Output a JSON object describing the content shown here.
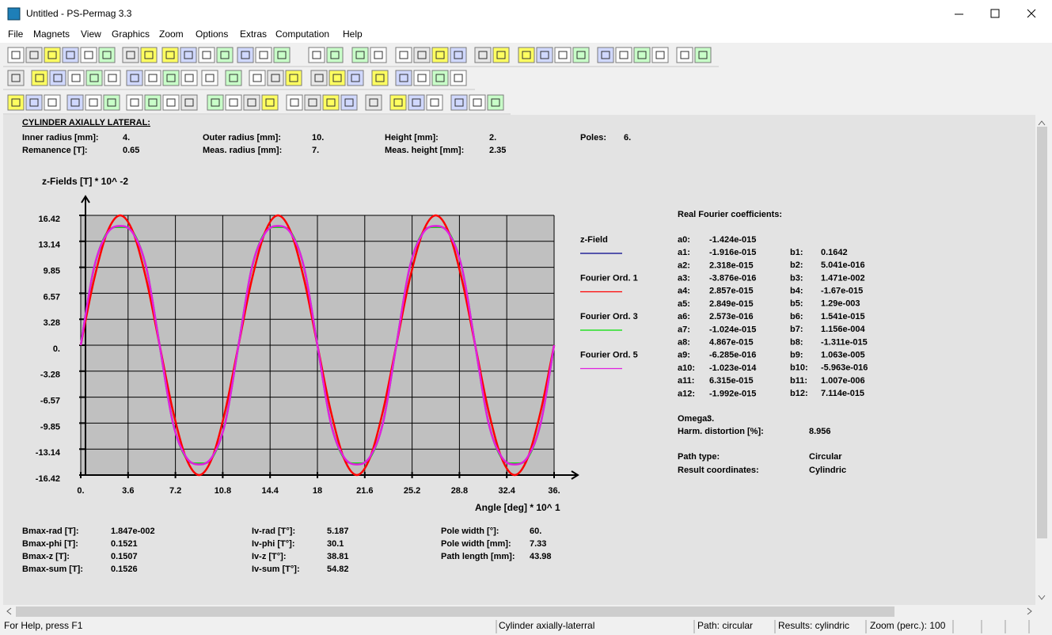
{
  "window": {
    "title": "Untitled - PS-Permag 3.3"
  },
  "menu": [
    "File",
    "Magnets",
    "View",
    "Graphics",
    "Zoom",
    "Options",
    "Extras",
    "Computation",
    "Help"
  ],
  "header": {
    "title": "CYLINDER AXIALLY LATERAL:",
    "params": [
      {
        "label": "Inner radius [mm]:",
        "value": "4."
      },
      {
        "label": "Outer radius [mm]:",
        "value": "10."
      },
      {
        "label": "Height [mm]:",
        "value": "2."
      },
      {
        "label": "Poles:",
        "value": "6."
      },
      {
        "label": "Remanence [T]:",
        "value": "0.65"
      },
      {
        "label": "Meas. radius [mm]:",
        "value": "7."
      },
      {
        "label": "Meas. height [mm]:",
        "value": "2.35"
      }
    ]
  },
  "chart_data": {
    "type": "line",
    "title": "z-Fields [T] * 10^ -2",
    "x_label": "Angle [deg] * 10^ 1",
    "x": [
      0,
      1,
      2,
      3,
      4,
      5,
      6,
      7,
      8,
      9,
      10,
      11,
      12,
      13,
      14,
      15,
      16,
      17,
      18,
      19,
      20,
      21,
      22,
      23,
      24,
      25,
      26,
      27,
      28,
      29,
      30,
      31,
      32,
      33,
      34,
      35,
      36
    ],
    "series": [
      {
        "name": "z-Field",
        "color": "#00008b",
        "values": [
          0,
          9.74,
          14.11,
          15.08,
          14.11,
          9.74,
          0,
          -9.74,
          -14.11,
          -15.08,
          -14.11,
          -9.74,
          0,
          9.74,
          14.11,
          15.08,
          14.11,
          9.74,
          0,
          -9.74,
          -14.11,
          -15.08,
          -14.11,
          -9.74,
          0,
          9.74,
          14.11,
          15.08,
          14.11,
          9.74,
          0,
          -9.74,
          -14.11,
          -15.08,
          -14.11,
          -9.74,
          0
        ]
      },
      {
        "name": "Fourier Ord. 1",
        "color": "#ff0000",
        "values": [
          0,
          8.21,
          14.22,
          16.42,
          14.22,
          8.21,
          0,
          -8.21,
          -14.22,
          -16.42,
          -14.22,
          -8.21,
          0,
          8.21,
          14.22,
          16.42,
          14.22,
          8.21,
          0,
          -8.21,
          -14.22,
          -16.42,
          -14.22,
          -8.21,
          0,
          8.21,
          14.22,
          16.42,
          14.22,
          8.21,
          0,
          -8.21,
          -14.22,
          -16.42,
          -14.22,
          -8.21,
          0
        ]
      },
      {
        "name": "Fourier Ord. 3",
        "color": "#00e000",
        "values": [
          0,
          9.68,
          14.22,
          14.95,
          14.22,
          9.68,
          0,
          -9.68,
          -14.22,
          -14.95,
          -14.22,
          -9.68,
          0,
          9.68,
          14.22,
          14.95,
          14.22,
          9.68,
          0,
          -9.68,
          -14.22,
          -14.95,
          -14.22,
          -9.68,
          0,
          9.68,
          14.22,
          14.95,
          14.22,
          9.68,
          0,
          -9.68,
          -14.22,
          -14.95,
          -14.22,
          -9.68,
          0
        ]
      },
      {
        "name": "Fourier Ord. 5",
        "color": "#e020e0",
        "values": [
          0,
          9.74,
          14.11,
          15.08,
          14.11,
          9.74,
          0,
          -9.74,
          -14.11,
          -15.08,
          -14.11,
          -9.74,
          0,
          9.74,
          14.11,
          15.08,
          14.11,
          9.74,
          0,
          -9.74,
          -14.11,
          -15.08,
          -14.11,
          -9.74,
          0,
          9.74,
          14.11,
          15.08,
          14.11,
          9.74,
          0,
          -9.74,
          -14.11,
          -15.08,
          -14.11,
          -9.74,
          0
        ]
      }
    ],
    "xlim": [
      0,
      36
    ],
    "xticks": [
      {
        "value": 0,
        "label": "0."
      },
      3.6,
      7.2,
      10.8,
      14.4,
      18,
      21.6,
      25.2,
      28.8,
      32.4,
      {
        "value": 36,
        "label": "36."
      }
    ],
    "ylim": [
      -16.42,
      16.42
    ],
    "yticks": [
      16.42,
      13.14,
      9.85,
      6.57,
      3.28,
      {
        "value": 0,
        "label": "0."
      },
      -3.28,
      -6.57,
      -9.85,
      -13.14,
      -16.42
    ],
    "grid": true
  },
  "fourier": {
    "title": "Real Fourier coefficients:",
    "a": [
      {
        "label": "a0:",
        "value": "-1.424e-015"
      },
      {
        "label": "a1:",
        "value": "-1.916e-015"
      },
      {
        "label": "a2:",
        "value": "2.318e-015"
      },
      {
        "label": "a3:",
        "value": "-3.876e-016"
      },
      {
        "label": "a4:",
        "value": "2.857e-015"
      },
      {
        "label": "a5:",
        "value": "2.849e-015"
      },
      {
        "label": "a6:",
        "value": "2.573e-016"
      },
      {
        "label": "a7:",
        "value": "-1.024e-015"
      },
      {
        "label": "a8:",
        "value": "4.867e-015"
      },
      {
        "label": "a9:",
        "value": "-6.285e-016"
      },
      {
        "label": "a10:",
        "value": "-1.023e-014"
      },
      {
        "label": "a11:",
        "value": "6.315e-015"
      },
      {
        "label": "a12:",
        "value": "-1.992e-015"
      }
    ],
    "b": [
      {
        "label": "b1:",
        "value": "0.1642"
      },
      {
        "label": "b2:",
        "value": "5.041e-016"
      },
      {
        "label": "b3:",
        "value": "1.471e-002"
      },
      {
        "label": "b4:",
        "value": "-1.67e-015"
      },
      {
        "label": "b5:",
        "value": "1.29e-003"
      },
      {
        "label": "b6:",
        "value": "1.541e-015"
      },
      {
        "label": "b7:",
        "value": "1.156e-004"
      },
      {
        "label": "b8:",
        "value": "-1.311e-015"
      },
      {
        "label": "b9:",
        "value": "1.063e-005"
      },
      {
        "label": "b10:",
        "value": "-5.963e-016"
      },
      {
        "label": "b11:",
        "value": "1.007e-006"
      },
      {
        "label": "b12:",
        "value": "7.114e-015"
      }
    ]
  },
  "info": [
    {
      "label": "Omega:",
      "value": "3."
    },
    {
      "label": "Harm. distortion [%]:",
      "value": "8.956"
    },
    {
      "label": "Path type:",
      "value": "Circular"
    },
    {
      "label": "Result coordinates:",
      "value": "Cylindric"
    }
  ],
  "stats": [
    [
      {
        "label": "Bmax-rad [T]:",
        "value": "1.847e-002"
      },
      {
        "label": "Bmax-phi [T]:",
        "value": "0.1521"
      },
      {
        "label": "Bmax-z [T]:",
        "value": "0.1507"
      },
      {
        "label": "Bmax-sum [T]:",
        "value": "0.1526"
      }
    ],
    [
      {
        "label": "Iv-rad [T°]:",
        "value": "5.187"
      },
      {
        "label": "Iv-phi [T°]:",
        "value": "30.1"
      },
      {
        "label": "Iv-z [T°]:",
        "value": "38.81"
      },
      {
        "label": "Iv-sum [T°]:",
        "value": "54.82"
      }
    ],
    [
      {
        "label": "Pole width [°]:",
        "value": "60."
      },
      {
        "label": "Pole width [mm]:",
        "value": "7.33"
      },
      {
        "label": "Path length [mm]:",
        "value": "43.98"
      }
    ]
  ],
  "status": [
    "For Help, press F1",
    "Cylinder axially-laterral",
    "Path: circular",
    "Results: cylindric",
    "Zoom (perc.): 100"
  ]
}
